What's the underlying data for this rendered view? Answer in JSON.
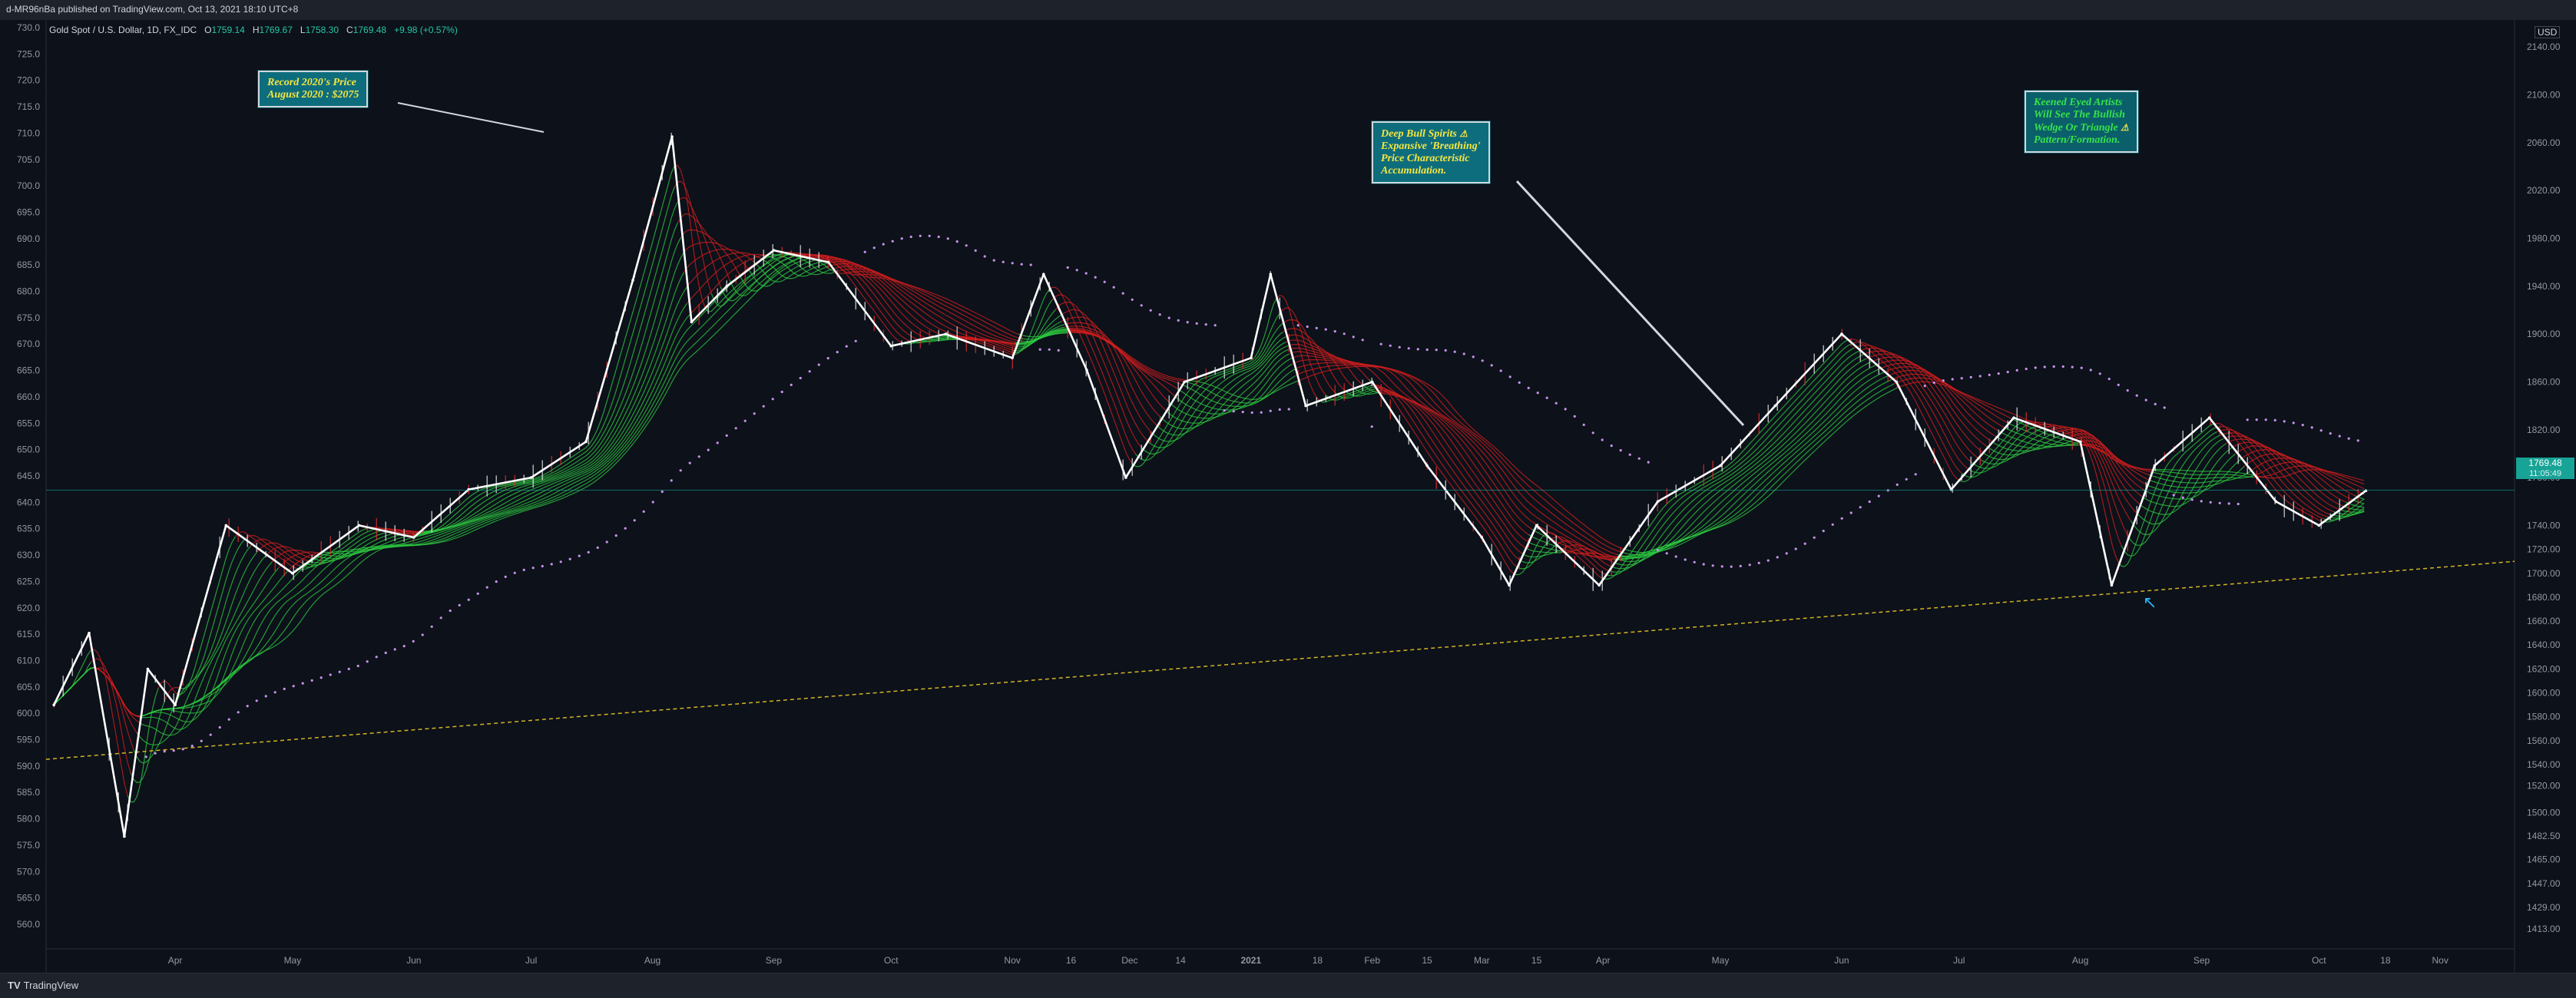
{
  "topbar": {
    "published": "d-MR96nBa published on TradingView.com, Oct 13, 2021 18:10 UTC+8"
  },
  "legend": {
    "symbol": "Gold Spot / U.S. Dollar, 1D, FX_IDC",
    "o_label": "O",
    "o": "1759.14",
    "h_label": "H",
    "h": "1769.67",
    "l_label": "L",
    "l": "1758.30",
    "c_label": "C",
    "c": "1769.48",
    "change": "+9.98 (+0.57%)"
  },
  "price_tag": {
    "price": "1769.48",
    "countdown": "11:05:49"
  },
  "currency": "USD",
  "annotations": {
    "record": [
      "Record 2020's Price",
      "August 2020 : $2075"
    ],
    "bull": [
      "Deep Bull Spirits",
      "Expansive 'Breathing'",
      "Price Characteristic",
      "Accumulation."
    ],
    "wedge": [
      "Keened Eyed Artists",
      "Will See The Bullish",
      "Wedge Or Triangle",
      "Pattern/Formation."
    ]
  },
  "bottombar": {
    "brand": "TradingView"
  },
  "chart_data": {
    "type": "line",
    "title": "Gold Spot / U.S. Dollar, 1D, FX_IDC",
    "left_axis_ticks": [
      "730.0",
      "725.0",
      "720.0",
      "715.0",
      "710.0",
      "705.0",
      "700.0",
      "695.0",
      "690.0",
      "685.0",
      "680.0",
      "675.0",
      "670.0",
      "665.0",
      "660.0",
      "655.0",
      "650.0",
      "645.0",
      "640.0",
      "635.0",
      "630.0",
      "625.0",
      "620.0",
      "615.0",
      "610.0",
      "605.0",
      "600.0",
      "595.0",
      "590.0",
      "585.0",
      "580.0",
      "575.0",
      "570.0",
      "565.0",
      "560.0"
    ],
    "right_axis_ticks": [
      "2140.00",
      "2100.00",
      "2060.00",
      "2020.00",
      "1980.00",
      "1940.00",
      "1900.00",
      "1860.00",
      "1820.00",
      "1780.00",
      "1740.00",
      "1720.00",
      "1700.00",
      "1680.00",
      "1660.00",
      "1640.00",
      "1620.00",
      "1600.00",
      "1580.00",
      "1560.00",
      "1540.00",
      "1520.00",
      "1500.00",
      "1482.50",
      "1465.00",
      "1447.00",
      "1429.00",
      "1413.00"
    ],
    "x_ticks": [
      "Apr",
      "May",
      "Jun",
      "Jul",
      "Aug",
      "Sep",
      "Oct",
      "Nov",
      "16",
      "Dec",
      "14",
      "2021",
      "18",
      "Feb",
      "15",
      "Mar",
      "15",
      "Apr",
      "May",
      "Jun",
      "Jul",
      "Aug",
      "Sep",
      "Oct",
      "18",
      "Nov"
    ],
    "legend_position": "top-left",
    "grid": false,
    "series": [
      {
        "name": "Gold Spot / U.S. Dollar",
        "x": [
          "2020-03-01",
          "2020-03-10",
          "2020-03-19",
          "2020-03-25",
          "2020-04-01",
          "2020-04-14",
          "2020-05-01",
          "2020-05-18",
          "2020-06-01",
          "2020-06-15",
          "2020-07-01",
          "2020-07-15",
          "2020-07-27",
          "2020-08-06",
          "2020-08-11",
          "2020-08-20",
          "2020-09-01",
          "2020-09-15",
          "2020-10-01",
          "2020-10-15",
          "2020-11-01",
          "2020-11-09",
          "2020-11-20",
          "2020-11-30",
          "2020-12-15",
          "2021-01-01",
          "2021-01-06",
          "2021-01-15",
          "2021-02-01",
          "2021-02-15",
          "2021-03-01",
          "2021-03-08",
          "2021-03-15",
          "2021-03-31",
          "2021-04-15",
          "2021-05-01",
          "2021-05-15",
          "2021-06-01",
          "2021-06-15",
          "2021-06-29",
          "2021-07-15",
          "2021-08-01",
          "2021-08-09",
          "2021-08-20",
          "2021-09-03",
          "2021-09-20",
          "2021-10-01",
          "2021-10-13"
        ],
        "values": [
          1590,
          1650,
          1480,
          1620,
          1590,
          1740,
          1700,
          1740,
          1730,
          1770,
          1780,
          1810,
          1945,
          2065,
          1910,
          1940,
          1970,
          1960,
          1890,
          1900,
          1880,
          1950,
          1870,
          1780,
          1860,
          1880,
          1950,
          1840,
          1860,
          1790,
          1730,
          1690,
          1740,
          1690,
          1760,
          1790,
          1840,
          1900,
          1860,
          1770,
          1830,
          1810,
          1690,
          1790,
          1830,
          1760,
          1740,
          1769
        ]
      },
      {
        "name": "Trendline",
        "x": [
          "2020-03-01",
          "2021-10-13"
        ],
        "values": [
          1545,
          1700
        ]
      }
    ]
  }
}
